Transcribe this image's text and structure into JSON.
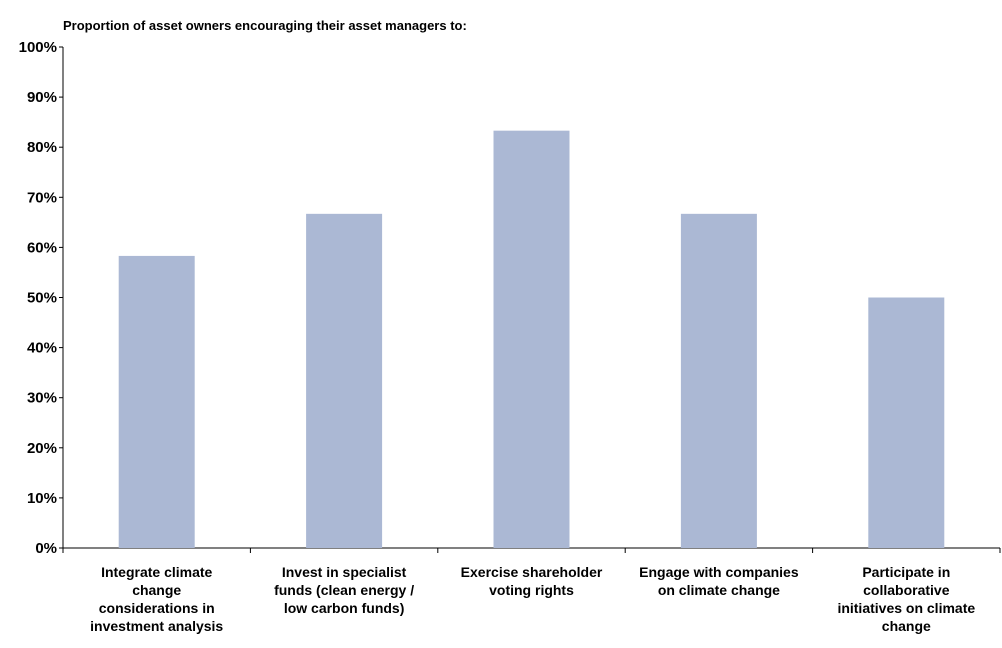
{
  "chart_data": {
    "type": "bar",
    "title": "Proportion of asset owners encouraging their asset managers to:",
    "xlabel": "",
    "ylabel": "",
    "ylim": [
      0,
      100
    ],
    "y_ticks": [
      "0%",
      "10%",
      "20%",
      "30%",
      "40%",
      "50%",
      "60%",
      "70%",
      "80%",
      "90%",
      "100%"
    ],
    "categories": [
      "Integrate climate change considerations in investment analysis",
      "Invest in specialist funds (clean energy / low carbon funds)",
      "Exercise shareholder voting rights",
      "Engage with companies on climate change",
      "Participate in collaborative initiatives on climate change"
    ],
    "category_lines": [
      [
        "Integrate climate",
        "change",
        "considerations in",
        "investment analysis"
      ],
      [
        "Invest in specialist",
        "funds (clean energy /",
        "low carbon funds)"
      ],
      [
        "Exercise shareholder",
        "voting rights"
      ],
      [
        "Engage with companies",
        "on climate change"
      ],
      [
        "Participate in",
        "collaborative",
        "initiatives on climate",
        "change"
      ]
    ],
    "values": [
      58.3,
      66.7,
      83.3,
      66.7,
      50.0
    ],
    "grid": false,
    "legend": "none",
    "bar_color": "#abb8d4",
    "axis_color": "#000000"
  }
}
